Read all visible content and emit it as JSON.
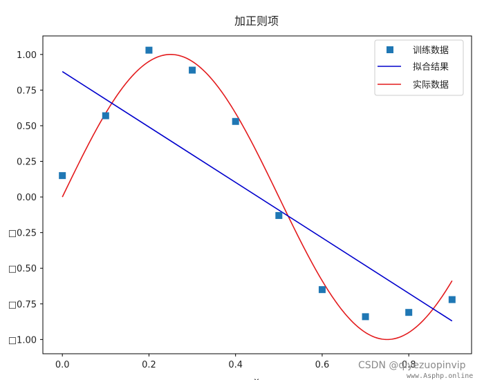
{
  "chart_data": {
    "type": "line",
    "title": "加正则项",
    "xlabel": "x",
    "ylabel": "",
    "xlim": [
      -0.045,
      0.945
    ],
    "ylim": [
      -1.1,
      1.13
    ],
    "x_ticks": [
      0.0,
      0.2,
      0.4,
      0.6,
      0.8
    ],
    "x_tick_labels": [
      "0.0",
      "0.2",
      "0.4",
      "0.6",
      "0.8"
    ],
    "y_ticks": [
      1.0,
      0.75,
      0.5,
      0.25,
      0.0,
      -0.25,
      -0.5,
      -0.75,
      -1.0
    ],
    "y_tick_labels": [
      "1.00",
      "0.75",
      "0.50",
      "0.25",
      "0.00",
      "□0.25",
      "□0.50",
      "□0.75",
      "□1.00"
    ],
    "grid": false,
    "legend_position": "top-right",
    "series": [
      {
        "name": "训练数据",
        "kind": "scatter",
        "marker": "square",
        "color": "#1f77b4",
        "x": [
          0.0,
          0.1,
          0.2,
          0.3,
          0.4,
          0.5,
          0.6,
          0.7,
          0.8,
          0.9
        ],
        "y": [
          0.15,
          0.57,
          1.03,
          0.89,
          0.53,
          -0.13,
          -0.65,
          -0.84,
          -0.81,
          -0.72
        ]
      },
      {
        "name": "拟合结果",
        "kind": "line",
        "color": "#0000cc",
        "x": [
          0.0,
          0.9
        ],
        "y": [
          0.88,
          -0.87
        ]
      },
      {
        "name": "实际数据",
        "kind": "line",
        "function": "sin(2*pi*x)",
        "color": "#e31a1c",
        "x_range": [
          0.0,
          0.9
        ]
      }
    ]
  },
  "watermark": {
    "text": "CSDN @qiyezuopinvip",
    "small": "www.Asphp.online"
  }
}
